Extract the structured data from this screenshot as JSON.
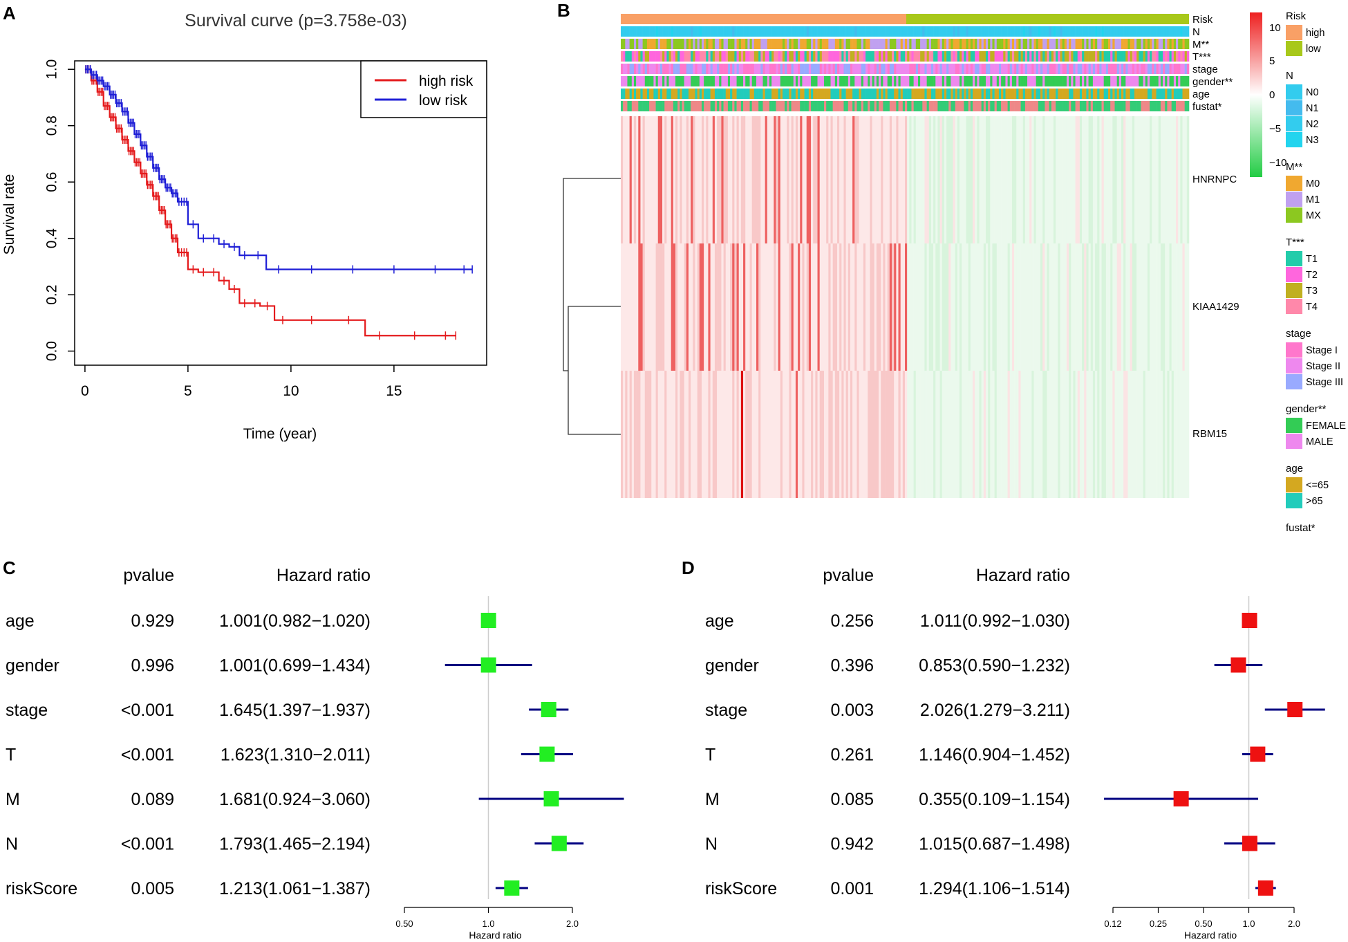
{
  "colors": {
    "high_risk": "#e41a1c",
    "low_risk": "#1f1fd6",
    "forest_box_c": "#22ee22",
    "forest_box_d": "#ee1111",
    "forest_line": "#000080",
    "heat_high": "#ee2020",
    "heat_low": "#22cc44"
  },
  "chart_data": [
    {
      "panel": "A",
      "type": "line",
      "title": "Survival curve (p=3.758e-03)",
      "xlabel": "Time (year)",
      "ylabel": "Survival rate",
      "xlim": [
        -0.5,
        19.5
      ],
      "ylim": [
        -0.05,
        1.03
      ],
      "xticks": [
        "0",
        "5",
        "10",
        "15"
      ],
      "yticks": [
        "0.0",
        "0.2",
        "0.4",
        "0.6",
        "0.8",
        "1.0"
      ],
      "legend": [
        "high risk",
        "low risk"
      ],
      "series": [
        {
          "name": "high risk",
          "x": [
            0,
            0.3,
            0.6,
            0.9,
            1.2,
            1.5,
            1.8,
            2.1,
            2.4,
            2.7,
            3.0,
            3.3,
            3.6,
            3.9,
            4.2,
            4.5,
            5.0,
            5.5,
            6.0,
            6.5,
            7.0,
            7.5,
            8.0,
            8.5,
            9.2,
            10.0,
            12.0,
            13.6,
            15.0,
            17.0,
            18.0
          ],
          "y": [
            1.0,
            0.96,
            0.92,
            0.87,
            0.83,
            0.79,
            0.75,
            0.71,
            0.67,
            0.63,
            0.59,
            0.55,
            0.5,
            0.45,
            0.4,
            0.35,
            0.29,
            0.28,
            0.28,
            0.25,
            0.22,
            0.17,
            0.17,
            0.16,
            0.11,
            0.11,
            0.11,
            0.055,
            0.055,
            0.055,
            0.055
          ]
        },
        {
          "name": "low risk",
          "x": [
            0,
            0.3,
            0.6,
            0.9,
            1.2,
            1.5,
            1.8,
            2.1,
            2.4,
            2.7,
            3.0,
            3.3,
            3.6,
            3.9,
            4.2,
            4.5,
            5.0,
            5.5,
            6.0,
            6.5,
            7.0,
            7.5,
            8.0,
            8.8,
            10.0,
            12.0,
            14.0,
            16.0,
            18.0,
            18.8
          ],
          "y": [
            1.0,
            0.98,
            0.96,
            0.94,
            0.91,
            0.88,
            0.85,
            0.81,
            0.77,
            0.73,
            0.69,
            0.65,
            0.61,
            0.58,
            0.56,
            0.53,
            0.45,
            0.4,
            0.4,
            0.38,
            0.37,
            0.34,
            0.34,
            0.29,
            0.29,
            0.29,
            0.29,
            0.29,
            0.29,
            0.29
          ]
        }
      ]
    },
    {
      "panel": "B",
      "type": "heatmap",
      "annotation_tracks": [
        "Risk",
        "N",
        "M**",
        "T***",
        "stage",
        "gender**",
        "age",
        "fustat*"
      ],
      "rows": [
        "HNRNPC",
        "KIAA1429",
        "RBM15"
      ],
      "scale": {
        "min": -10,
        "max": 10,
        "ticks": [
          "10",
          "5",
          "0",
          "−5",
          "−10"
        ]
      },
      "legend": [
        {
          "title": "Risk",
          "items": [
            {
              "label": "high",
              "color": "#f9a066"
            },
            {
              "label": "low",
              "color": "#a8c81a"
            }
          ]
        },
        {
          "title": "N",
          "items": [
            {
              "label": "N0",
              "color": "#33ccee"
            },
            {
              "label": "N1",
              "color": "#44bbee"
            },
            {
              "label": "N2",
              "color": "#33ccee"
            },
            {
              "label": "N3",
              "color": "#22d4ee"
            }
          ]
        },
        {
          "title": "M**",
          "items": [
            {
              "label": "M0",
              "color": "#f0a830"
            },
            {
              "label": "M1",
              "color": "#c0a0f0"
            },
            {
              "label": "MX",
              "color": "#8cc820"
            }
          ]
        },
        {
          "title": "T***",
          "items": [
            {
              "label": "T1",
              "color": "#22ccaa"
            },
            {
              "label": "T2",
              "color": "#ff66dd"
            },
            {
              "label": "T3",
              "color": "#c0b020"
            },
            {
              "label": "T4",
              "color": "#ff88aa"
            }
          ]
        },
        {
          "title": "stage",
          "items": [
            {
              "label": "Stage I",
              "color": "#ff77cc"
            },
            {
              "label": "Stage II",
              "color": "#ee88ee"
            },
            {
              "label": "Stage III",
              "color": "#99aaff"
            }
          ]
        },
        {
          "title": "gender**",
          "items": [
            {
              "label": "FEMALE",
              "color": "#33cc55"
            },
            {
              "label": "MALE",
              "color": "#ee88ee"
            }
          ]
        },
        {
          "title": "age",
          "items": [
            {
              "label": "<=65",
              "color": "#d4a820"
            },
            {
              "label": ">65",
              "color": "#22ccbb"
            }
          ]
        },
        {
          "title": "fustat*",
          "items": []
        }
      ]
    },
    {
      "panel": "C",
      "type": "forest",
      "headers": {
        "pvalue": "pvalue",
        "hr": "Hazard ratio"
      },
      "rows": [
        {
          "name": "age",
          "pvalue": "0.929",
          "hr_text": "1.001(0.982−1.020)",
          "hr": 1.001,
          "lo": 0.982,
          "hi": 1.02
        },
        {
          "name": "gender",
          "pvalue": "0.996",
          "hr_text": "1.001(0.699−1.434)",
          "hr": 1.001,
          "lo": 0.699,
          "hi": 1.434
        },
        {
          "name": "stage",
          "pvalue": "<0.001",
          "hr_text": "1.645(1.397−1.937)",
          "hr": 1.645,
          "lo": 1.397,
          "hi": 1.937
        },
        {
          "name": "T",
          "pvalue": "<0.001",
          "hr_text": "1.623(1.310−2.011)",
          "hr": 1.623,
          "lo": 1.31,
          "hi": 2.011
        },
        {
          "name": "M",
          "pvalue": "0.089",
          "hr_text": "1.681(0.924−3.060)",
          "hr": 1.681,
          "lo": 0.924,
          "hi": 3.06
        },
        {
          "name": "N",
          "pvalue": "<0.001",
          "hr_text": "1.793(1.465−2.194)",
          "hr": 1.793,
          "lo": 1.465,
          "hi": 2.194
        },
        {
          "name": "riskScore",
          "pvalue": "0.005",
          "hr_text": "1.213(1.061−1.387)",
          "hr": 1.213,
          "lo": 1.061,
          "hi": 1.387
        }
      ],
      "xticks": [
        {
          "v": 0.5,
          "label": "0.50"
        },
        {
          "v": 1.0,
          "label": "1.0"
        },
        {
          "v": 2.0,
          "label": "2.0"
        }
      ],
      "xrange": [
        0.5,
        2.0
      ],
      "xlabel": "Hazard ratio"
    },
    {
      "panel": "D",
      "type": "forest",
      "headers": {
        "pvalue": "pvalue",
        "hr": "Hazard ratio"
      },
      "rows": [
        {
          "name": "age",
          "pvalue": "0.256",
          "hr_text": "1.011(0.992−1.030)",
          "hr": 1.011,
          "lo": 0.992,
          "hi": 1.03
        },
        {
          "name": "gender",
          "pvalue": "0.396",
          "hr_text": "0.853(0.590−1.232)",
          "hr": 0.853,
          "lo": 0.59,
          "hi": 1.232
        },
        {
          "name": "stage",
          "pvalue": "0.003",
          "hr_text": "2.026(1.279−3.211)",
          "hr": 2.026,
          "lo": 1.279,
          "hi": 3.211
        },
        {
          "name": "T",
          "pvalue": "0.261",
          "hr_text": "1.146(0.904−1.452)",
          "hr": 1.146,
          "lo": 0.904,
          "hi": 1.452
        },
        {
          "name": "M",
          "pvalue": "0.085",
          "hr_text": "0.355(0.109−1.154)",
          "hr": 0.355,
          "lo": 0.109,
          "hi": 1.154
        },
        {
          "name": "N",
          "pvalue": "0.942",
          "hr_text": "1.015(0.687−1.498)",
          "hr": 1.015,
          "lo": 0.687,
          "hi": 1.498
        },
        {
          "name": "riskScore",
          "pvalue": "0.001",
          "hr_text": "1.294(1.106−1.514)",
          "hr": 1.294,
          "lo": 1.106,
          "hi": 1.514
        }
      ],
      "xticks": [
        {
          "v": 0.125,
          "label": "0.12"
        },
        {
          "v": 0.25,
          "label": "0.25"
        },
        {
          "v": 0.5,
          "label": "0.50"
        },
        {
          "v": 1.0,
          "label": "1.0"
        },
        {
          "v": 2.0,
          "label": "2.0"
        }
      ],
      "xrange": [
        0.125,
        2.0
      ],
      "xlabel": "Hazard ratio"
    }
  ],
  "panel_labels": {
    "a": "A",
    "b": "B",
    "c": "C",
    "d": "D"
  }
}
